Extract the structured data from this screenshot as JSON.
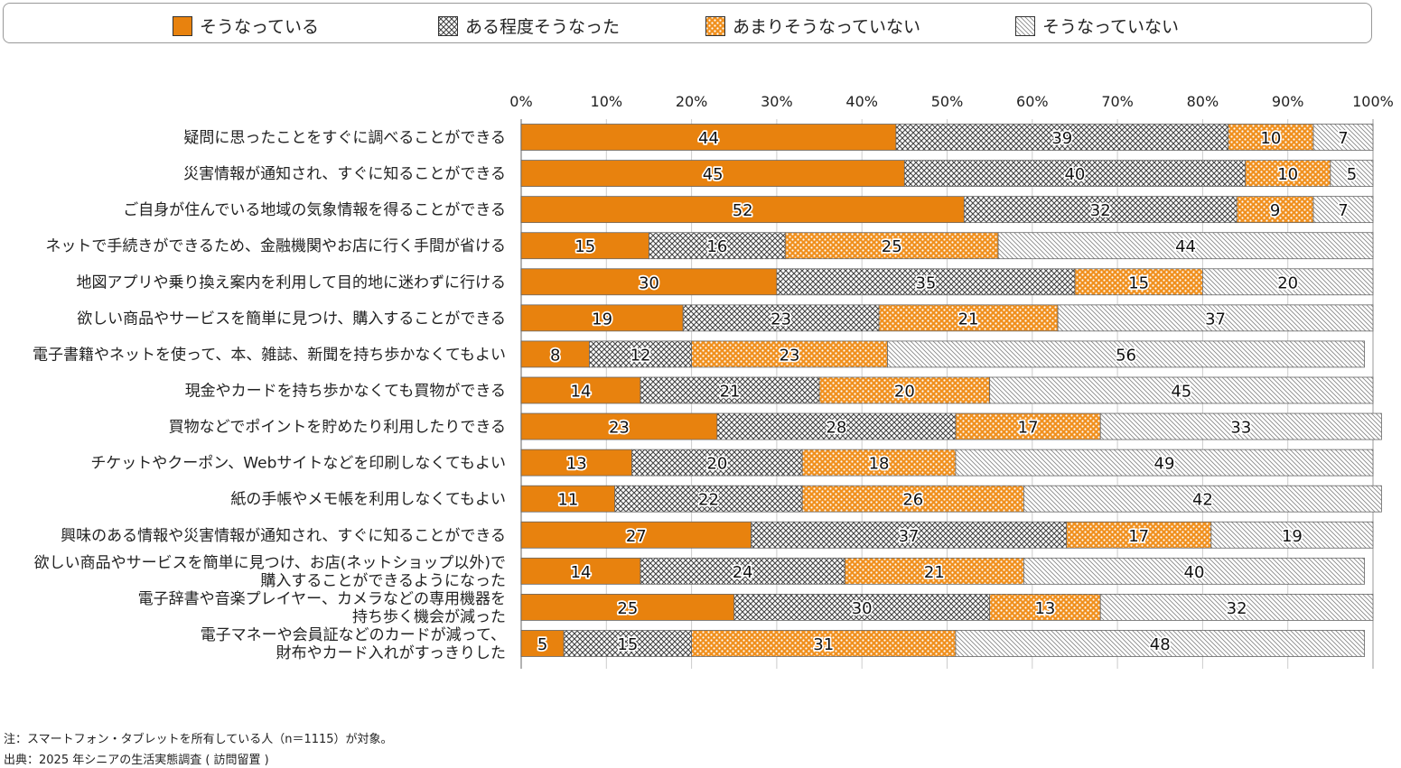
{
  "chart_data": {
    "type": "bar",
    "stacked": true,
    "orientation": "horizontal",
    "xlim": [
      0,
      100
    ],
    "xticks": [
      "0%",
      "10%",
      "20%",
      "30%",
      "40%",
      "50%",
      "60%",
      "70%",
      "80%",
      "90%",
      "100%"
    ],
    "legend_position": "top",
    "categories": [
      [
        "疑問に思ったことをすぐに調べることができる"
      ],
      [
        "災害情報が通知され、すぐに知ることができる"
      ],
      [
        "ご自身が住んでいる地域の気象情報を得ることができる"
      ],
      [
        "ネットで手続きができるため、金融機関やお店に行く手間が省ける"
      ],
      [
        "地図アプリや乗り換え案内を利用して目的地に迷わずに行ける"
      ],
      [
        "欲しい商品やサービスを簡単に見つけ、購入することができる"
      ],
      [
        "電子書籍やネットを使って、本、雑誌、新聞を持ち歩かなくてもよい"
      ],
      [
        "現金やカードを持ち歩かなくても買物ができる"
      ],
      [
        "買物などでポイントを貯めたり利用したりできる"
      ],
      [
        "チケットやクーポン、Webサイトなどを印刷しなくてもよい"
      ],
      [
        "紙の手帳やメモ帳を利用しなくてもよい"
      ],
      [
        "興味のある情報や災害情報が通知され、すぐに知ることができる"
      ],
      [
        "欲しい商品やサービスを簡単に見つけ、お店(ネットショップ以外)で",
        "購入することができるようになった"
      ],
      [
        "電子辞書や音楽プレイヤー、カメラなどの専用機器を",
        "持ち歩く機会が減った"
      ],
      [
        "電子マネーや会員証などのカードが減って、",
        "財布やカード入れがすっきりした"
      ]
    ],
    "series": [
      {
        "name": "そうなっている",
        "pattern": "solid",
        "color": "#E8820E",
        "values": [
          44,
          45,
          52,
          15,
          30,
          19,
          8,
          14,
          23,
          13,
          11,
          27,
          14,
          25,
          5
        ]
      },
      {
        "name": "ある程度そうなった",
        "pattern": "crosshatch",
        "color": "#555555",
        "values": [
          39,
          40,
          32,
          16,
          35,
          23,
          12,
          21,
          28,
          20,
          22,
          37,
          24,
          30,
          15
        ]
      },
      {
        "name": "あまりそうなっていない",
        "pattern": "dots",
        "color": "#F0901E",
        "values": [
          10,
          10,
          9,
          25,
          15,
          21,
          23,
          20,
          17,
          18,
          26,
          17,
          21,
          13,
          31
        ]
      },
      {
        "name": "そうなっていない",
        "pattern": "diagonal",
        "color": "#777777",
        "values": [
          7,
          5,
          7,
          44,
          20,
          37,
          56,
          45,
          33,
          49,
          42,
          19,
          40,
          32,
          48
        ]
      }
    ]
  },
  "notes": {
    "note": "注：スマートフォン・タブレットを所有している人（n＝1115）が対象。",
    "source": "出典：2025 年シニアの生活実態調査 ( 訪問留置 )"
  }
}
